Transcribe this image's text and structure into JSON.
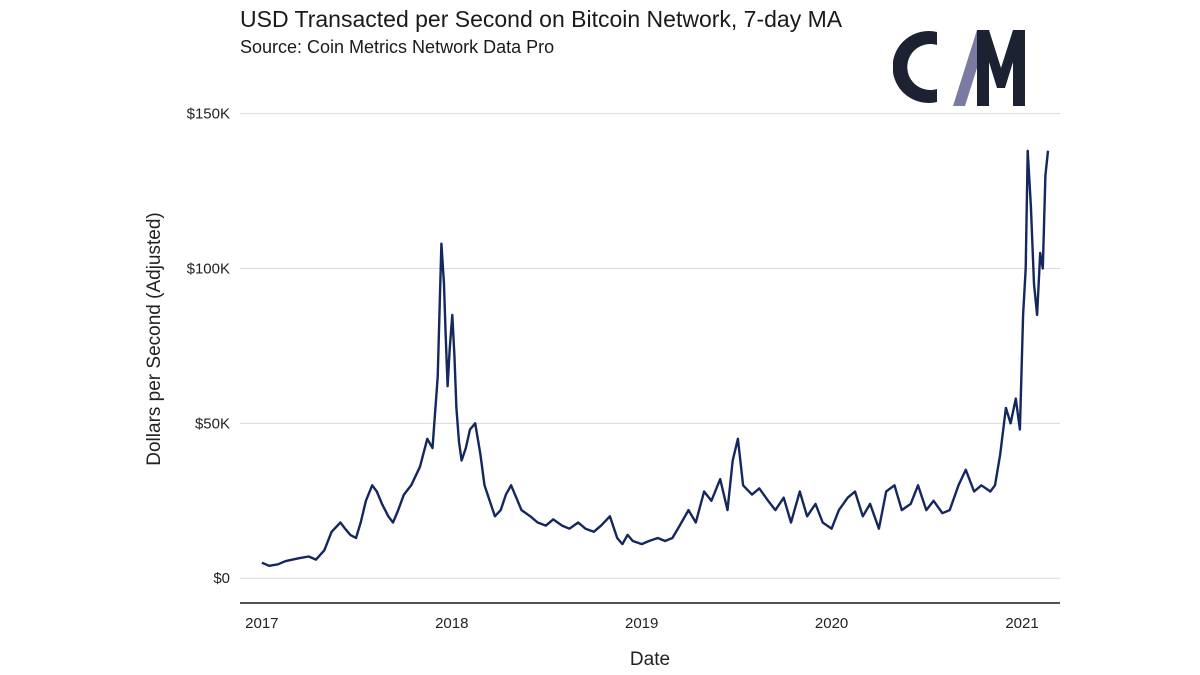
{
  "header": {
    "title": "USD Transacted per Second on Bitcoin Network, 7-day MA",
    "subtitle": "Source: Coin Metrics Network Data Pro",
    "logo_text": "CM"
  },
  "colors": {
    "line": "#14275e",
    "grid": "#d9d9d9",
    "axis": "#1a1a1a",
    "logo_dark": "#1d2233",
    "logo_accent": "#7a7aa2"
  },
  "chart_data": {
    "type": "line",
    "title": "USD Transacted per Second on Bitcoin Network, 7-day MA",
    "subtitle": "Source: Coin Metrics Network Data Pro",
    "xlabel": "Date",
    "ylabel": "Dollars per Second (Adjusted)",
    "x_range": [
      "2016-11-20",
      "2021-03-15"
    ],
    "ylim": [
      -8000,
      156000
    ],
    "x_ticks": [
      {
        "label": "2017",
        "value": "2017-01-01"
      },
      {
        "label": "2018",
        "value": "2018-01-01"
      },
      {
        "label": "2019",
        "value": "2019-01-01"
      },
      {
        "label": "2020",
        "value": "2020-01-01"
      },
      {
        "label": "2021",
        "value": "2021-01-01"
      }
    ],
    "y_ticks": [
      {
        "label": "$0",
        "value": 0
      },
      {
        "label": "$50K",
        "value": 50000
      },
      {
        "label": "$100K",
        "value": 100000
      },
      {
        "label": "$150K",
        "value": 150000
      }
    ],
    "grid": "horizontal",
    "series": [
      {
        "x": [
          "2017-01-01",
          "2017-01-15",
          "2017-02-01",
          "2017-02-15",
          "2017-03-01",
          "2017-03-15",
          "2017-04-01",
          "2017-04-15",
          "2017-05-01",
          "2017-05-15",
          "2017-06-01",
          "2017-06-10",
          "2017-06-20",
          "2017-07-01",
          "2017-07-10",
          "2017-07-20",
          "2017-08-01",
          "2017-08-10",
          "2017-08-20",
          "2017-09-01",
          "2017-09-10",
          "2017-09-20",
          "2017-10-01",
          "2017-10-15",
          "2017-11-01",
          "2017-11-15",
          "2017-11-25",
          "2017-12-05",
          "2017-12-12",
          "2017-12-17",
          "2017-12-20",
          "2017-12-24",
          "2017-12-28",
          "2018-01-02",
          "2018-01-06",
          "2018-01-10",
          "2018-01-15",
          "2018-01-20",
          "2018-01-28",
          "2018-02-05",
          "2018-02-15",
          "2018-02-25",
          "2018-03-05",
          "2018-03-15",
          "2018-03-25",
          "2018-04-05",
          "2018-04-15",
          "2018-04-25",
          "2018-05-05",
          "2018-05-15",
          "2018-06-01",
          "2018-06-15",
          "2018-07-01",
          "2018-07-15",
          "2018-08-01",
          "2018-08-15",
          "2018-09-01",
          "2018-09-15",
          "2018-10-01",
          "2018-10-15",
          "2018-11-01",
          "2018-11-15",
          "2018-11-25",
          "2018-12-05",
          "2018-12-15",
          "2019-01-01",
          "2019-01-15",
          "2019-02-01",
          "2019-02-15",
          "2019-03-01",
          "2019-03-15",
          "2019-04-01",
          "2019-04-15",
          "2019-05-01",
          "2019-05-15",
          "2019-06-01",
          "2019-06-15",
          "2019-06-25",
          "2019-07-05",
          "2019-07-15",
          "2019-08-01",
          "2019-08-15",
          "2019-09-01",
          "2019-09-15",
          "2019-10-01",
          "2019-10-15",
          "2019-11-01",
          "2019-11-15",
          "2019-12-01",
          "2019-12-15",
          "2020-01-01",
          "2020-01-15",
          "2020-02-01",
          "2020-02-15",
          "2020-03-01",
          "2020-03-15",
          "2020-04-01",
          "2020-04-15",
          "2020-05-01",
          "2020-05-15",
          "2020-06-01",
          "2020-06-15",
          "2020-07-01",
          "2020-07-15",
          "2020-08-01",
          "2020-08-15",
          "2020-09-01",
          "2020-09-15",
          "2020-10-01",
          "2020-10-15",
          "2020-11-01",
          "2020-11-10",
          "2020-11-20",
          "2020-12-01",
          "2020-12-10",
          "2020-12-20",
          "2020-12-28",
          "2021-01-03",
          "2021-01-08",
          "2021-01-12",
          "2021-01-18",
          "2021-01-24",
          "2021-01-30",
          "2021-02-05",
          "2021-02-10",
          "2021-02-15",
          "2021-02-20"
        ],
        "values": [
          5000,
          4000,
          4500,
          5500,
          6000,
          6500,
          7000,
          6000,
          9000,
          15000,
          18000,
          16000,
          14000,
          13000,
          18000,
          25000,
          30000,
          28000,
          24000,
          20000,
          18000,
          22000,
          27000,
          30000,
          36000,
          45000,
          42000,
          65000,
          108000,
          95000,
          80000,
          62000,
          74000,
          85000,
          72000,
          55000,
          44000,
          38000,
          42000,
          48000,
          50000,
          40000,
          30000,
          25000,
          20000,
          22000,
          27000,
          30000,
          26000,
          22000,
          20000,
          18000,
          17000,
          19000,
          17000,
          16000,
          18000,
          16000,
          15000,
          17000,
          20000,
          13000,
          11000,
          14000,
          12000,
          11000,
          12000,
          13000,
          12000,
          13000,
          17000,
          22000,
          18000,
          28000,
          25000,
          32000,
          22000,
          38000,
          45000,
          30000,
          27000,
          29000,
          25000,
          22000,
          26000,
          18000,
          28000,
          20000,
          24000,
          18000,
          16000,
          22000,
          26000,
          28000,
          20000,
          24000,
          16000,
          28000,
          30000,
          22000,
          24000,
          30000,
          22000,
          25000,
          21000,
          22000,
          30000,
          35000,
          28000,
          30000,
          28000,
          30000,
          40000,
          55000,
          50000,
          58000,
          48000,
          85000,
          100000,
          138000,
          120000,
          95000,
          85000,
          105000,
          100000,
          130000,
          138000
        ]
      }
    ]
  }
}
